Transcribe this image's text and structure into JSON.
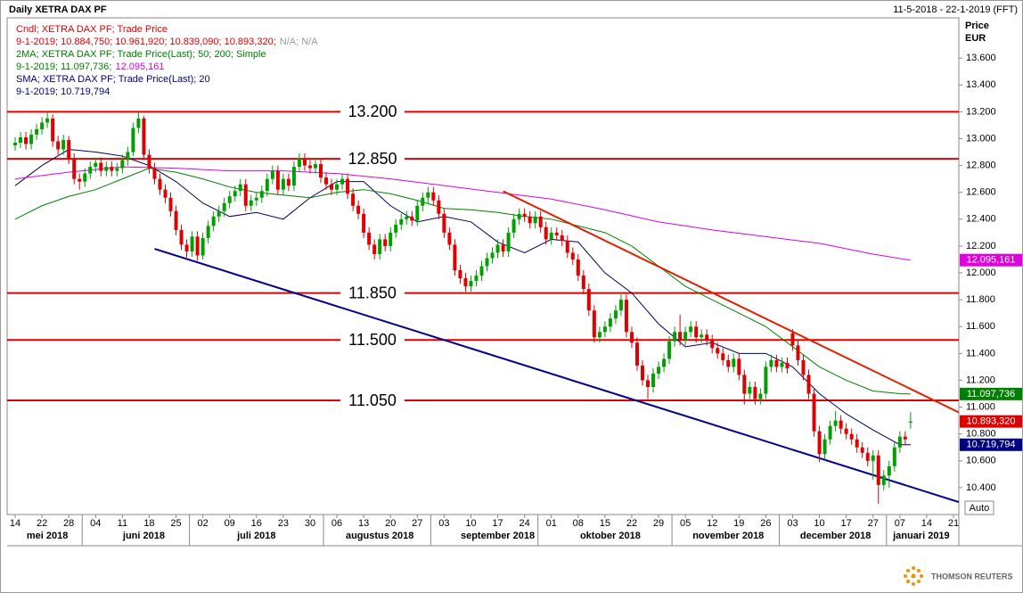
{
  "chart_data": {
    "type": "candlestick",
    "title": "Daily XETRA DAX PF",
    "date_range": "11-5-2018 - 22-1-2019 (FFT)",
    "y_axis_label": [
      "Price",
      "EUR"
    ],
    "auto_label": "Auto",
    "up_color": "#00a000",
    "down_color": "#e00000",
    "legend": [
      [
        {
          "text": "Cndl; XETRA DAX PF; Trade Price",
          "color": "#e00000"
        }
      ],
      [
        {
          "text": "9-1-2019; 10.884,750; 10.961,920; 10.839,090; 10.893,320;",
          "color": "#e00000"
        },
        {
          "text": "N/A; N/A",
          "color": "#999999"
        }
      ],
      [
        {
          "text": "2MA; XETRA DAX PF; Trade Price(Last);  50;  200; Simple",
          "color": "#008000"
        }
      ],
      [
        {
          "text": "9-1-2019; 11.097,736;",
          "color": "#008000"
        },
        {
          "text": "12.095,161",
          "color": "#e000e0"
        }
      ],
      [
        {
          "text": "SMA; XETRA DAX PF; Trade Price(Last);  20",
          "color": "#000080"
        }
      ],
      [
        {
          "text": "9-1-2019; 10.719,794",
          "color": "#000080"
        }
      ]
    ],
    "xlim": [
      -1.5,
      176
    ],
    "xticks": [
      {
        "value": 0,
        "label": "14"
      },
      {
        "value": 5,
        "label": "22"
      },
      {
        "value": 10,
        "label": "28"
      },
      {
        "value": 15,
        "label": "04"
      },
      {
        "value": 20,
        "label": "11"
      },
      {
        "value": 25,
        "label": "18"
      },
      {
        "value": 30,
        "label": "25"
      },
      {
        "value": 35,
        "label": "02"
      },
      {
        "value": 40,
        "label": "09"
      },
      {
        "value": 45,
        "label": "16"
      },
      {
        "value": 50,
        "label": "23"
      },
      {
        "value": 55,
        "label": "30"
      },
      {
        "value": 60,
        "label": "06"
      },
      {
        "value": 65,
        "label": "13"
      },
      {
        "value": 70,
        "label": "20"
      },
      {
        "value": 75,
        "label": "27"
      },
      {
        "value": 80,
        "label": "03"
      },
      {
        "value": 85,
        "label": "10"
      },
      {
        "value": 90,
        "label": "17"
      },
      {
        "value": 95,
        "label": "24"
      },
      {
        "value": 100,
        "label": "01"
      },
      {
        "value": 105,
        "label": "08"
      },
      {
        "value": 110,
        "label": "15"
      },
      {
        "value": 115,
        "label": "22"
      },
      {
        "value": 120,
        "label": "29"
      },
      {
        "value": 125,
        "label": "05"
      },
      {
        "value": 130,
        "label": "12"
      },
      {
        "value": 135,
        "label": "19"
      },
      {
        "value": 140,
        "label": "26"
      },
      {
        "value": 145,
        "label": "03"
      },
      {
        "value": 150,
        "label": "10"
      },
      {
        "value": 155,
        "label": "17"
      },
      {
        "value": 160,
        "label": "27"
      },
      {
        "value": 165,
        "label": "07"
      },
      {
        "value": 170,
        "label": "14"
      },
      {
        "value": 175,
        "label": "21"
      }
    ],
    "month_labels": [
      {
        "value": 6,
        "label": "mei 2018"
      },
      {
        "value": 24,
        "label": "juni 2018"
      },
      {
        "value": 45,
        "label": "juli 2018"
      },
      {
        "value": 68,
        "label": "augustus 2018"
      },
      {
        "value": 90,
        "label": "september 2018"
      },
      {
        "value": 111,
        "label": "oktober 2018"
      },
      {
        "value": 133,
        "label": "november 2018"
      },
      {
        "value": 153,
        "label": "december 2018"
      },
      {
        "value": 169,
        "label": "januari 2019"
      }
    ],
    "ylim": [
      10200,
      13900
    ],
    "yticks": [
      {
        "value": 10400,
        "label": "10.400"
      },
      {
        "value": 10600,
        "label": "10.600"
      },
      {
        "value": 10800,
        "label": "10.800"
      },
      {
        "value": 11000,
        "label": "11.000"
      },
      {
        "value": 11200,
        "label": "11.200"
      },
      {
        "value": 11400,
        "label": "11.400"
      },
      {
        "value": 11600,
        "label": "11.600"
      },
      {
        "value": 11800,
        "label": "11.800"
      },
      {
        "value": 12000,
        "label": "12.000"
      },
      {
        "value": 12200,
        "label": "12.200"
      },
      {
        "value": 12400,
        "label": "12.400"
      },
      {
        "value": 12600,
        "label": "12.600"
      },
      {
        "value": 12800,
        "label": "12.800"
      },
      {
        "value": 13000,
        "label": "13.000"
      },
      {
        "value": 13200,
        "label": "13.200"
      },
      {
        "value": 13400,
        "label": "13.400"
      },
      {
        "value": 13600,
        "label": "13.600"
      }
    ],
    "hline_color": "#e00000",
    "hlines": [
      {
        "value": 13200,
        "label": "13.200"
      },
      {
        "value": 12850,
        "label": "12.850"
      },
      {
        "value": 11850,
        "label": "11.850"
      },
      {
        "value": 11500,
        "label": "11.500"
      },
      {
        "value": 11050,
        "label": "11.050"
      }
    ],
    "trendlines": [
      {
        "color": "#00008b",
        "x": [
          26,
          176
        ],
        "y": [
          12179,
          10293
        ]
      },
      {
        "color": "#e02000",
        "x": [
          91,
          176
        ],
        "y": [
          12609,
          10961
        ]
      }
    ],
    "series": [
      {
        "color": "#000060",
        "x": [
          0,
          5,
          10,
          15,
          20,
          25,
          30,
          35,
          40,
          45,
          50,
          55,
          60,
          65,
          70,
          75,
          80,
          85,
          90,
          95,
          100,
          105,
          110,
          115,
          120,
          125,
          130,
          135,
          140,
          145,
          150,
          155,
          160,
          165,
          167
        ],
        "values": [
          12650,
          12800,
          12920,
          12900,
          12870,
          12800,
          12680,
          12520,
          12420,
          12450,
          12400,
          12560,
          12680,
          12680,
          12500,
          12380,
          12420,
          12380,
          12230,
          12150,
          12250,
          12230,
          12000,
          11850,
          11620,
          11450,
          11480,
          11400,
          11400,
          11300,
          11100,
          10950,
          10830,
          10720,
          10720
        ]
      },
      {
        "color": "#008000",
        "x": [
          0,
          5,
          10,
          15,
          20,
          25,
          30,
          35,
          40,
          45,
          50,
          55,
          60,
          65,
          70,
          75,
          80,
          85,
          90,
          95,
          100,
          105,
          110,
          115,
          120,
          125,
          130,
          135,
          140,
          145,
          150,
          155,
          160,
          165,
          167
        ],
        "values": [
          12400,
          12500,
          12570,
          12620,
          12700,
          12780,
          12750,
          12700,
          12640,
          12600,
          12580,
          12560,
          12600,
          12620,
          12590,
          12540,
          12480,
          12470,
          12450,
          12420,
          12400,
          12350,
          12300,
          12200,
          12050,
          11900,
          11800,
          11700,
          11600,
          11450,
          11300,
          11200,
          11120,
          11100,
          11098
        ]
      },
      {
        "color": "#e000e0",
        "x": [
          0,
          10,
          20,
          30,
          40,
          50,
          60,
          70,
          80,
          90,
          100,
          110,
          120,
          130,
          140,
          150,
          160,
          167
        ],
        "values": [
          12700,
          12750,
          12790,
          12780,
          12760,
          12760,
          12740,
          12700,
          12650,
          12600,
          12550,
          12470,
          12380,
          12320,
          12270,
          12220,
          12140,
          12095
        ]
      }
    ],
    "last_labels": [
      {
        "value": 12095.161,
        "label": "12.095,161",
        "color": "#e000e0"
      },
      {
        "value": 11097.736,
        "label": "11.097,736",
        "color": "#008000"
      },
      {
        "value": 10893.32,
        "label": "10.893,320",
        "color": "#e00000"
      },
      {
        "value": 10719.794,
        "label": "10.719,794",
        "color": "#000080"
      }
    ],
    "open": [
      12950,
      12970,
      13010,
      12960,
      13030,
      13070,
      13120,
      13150,
      12980,
      12920,
      12990,
      12850,
      12700,
      12680,
      12740,
      12790,
      12820,
      12760,
      12790,
      12760,
      12780,
      12840,
      12900,
      13080,
      13150,
      12880,
      12780,
      12700,
      12620,
      12560,
      12460,
      12320,
      12210,
      12160,
      12270,
      12130,
      12260,
      12350,
      12420,
      12460,
      12520,
      12570,
      12610,
      12660,
      12500,
      12540,
      12560,
      12610,
      12700,
      12760,
      12620,
      12700,
      12650,
      12790,
      12850,
      12800,
      12780,
      12810,
      12710,
      12660,
      12620,
      12660,
      12700,
      12590,
      12500,
      12440,
      12300,
      12210,
      12140,
      12250,
      12200,
      12300,
      12360,
      12400,
      12420,
      12390,
      12500,
      12560,
      12600,
      12540,
      12440,
      12300,
      12210,
      12020,
      11960,
      11900,
      11940,
      11980,
      12050,
      12110,
      12150,
      12210,
      12160,
      12300,
      12400,
      12440,
      12420,
      12370,
      12420,
      12340,
      12250,
      12300,
      12280,
      12240,
      12150,
      12100,
      11980,
      11880,
      11720,
      11520,
      11560,
      11600,
      11660,
      11720,
      11800,
      11560,
      11480,
      11310,
      11200,
      11150,
      11250,
      11300,
      11360,
      11490,
      11560,
      11500,
      11560,
      11600,
      11520,
      11540,
      11500,
      11440,
      11400,
      11350,
      11300,
      11360,
      11240,
      11100,
      11150,
      11060,
      11100,
      11300,
      11350,
      11300,
      11330,
      11550,
      11460,
      11350,
      11240,
      11100,
      10820,
      10650,
      10760,
      10860,
      10900,
      10840,
      10800,
      10760,
      10700,
      10660,
      10600,
      10640,
      10420,
      10490,
      10560,
      10700,
      10780,
      10884.75
    ],
    "high": [
      13010,
      13050,
      13050,
      13070,
      13110,
      13160,
      13200,
      13180,
      13020,
      13030,
      13020,
      12890,
      12740,
      12780,
      12830,
      12860,
      12860,
      12830,
      12830,
      12820,
      12880,
      12940,
      13120,
      13200,
      13170,
      12920,
      12820,
      12740,
      12660,
      12600,
      12500,
      12360,
      12250,
      12310,
      12310,
      12300,
      12390,
      12460,
      12500,
      12560,
      12610,
      12650,
      12700,
      12700,
      12580,
      12600,
      12650,
      12740,
      12800,
      12800,
      12740,
      12740,
      12830,
      12890,
      12890,
      12840,
      12850,
      12850,
      12750,
      12700,
      12700,
      12740,
      12740,
      12630,
      12540,
      12480,
      12340,
      12250,
      12290,
      12290,
      12340,
      12400,
      12440,
      12460,
      12460,
      12540,
      12600,
      12640,
      12640,
      12580,
      12480,
      12340,
      12250,
      12060,
      12000,
      11980,
      12020,
      12090,
      12150,
      12190,
      12250,
      12250,
      12340,
      12440,
      12480,
      12480,
      12460,
      12460,
      12460,
      12380,
      12340,
      12340,
      12320,
      12280,
      12190,
      12140,
      12020,
      11920,
      11760,
      11600,
      11640,
      11700,
      11760,
      11840,
      11840,
      11600,
      11520,
      11350,
      11240,
      11290,
      11340,
      11400,
      11530,
      11600,
      11690,
      11600,
      11640,
      11640,
      11580,
      11580,
      11540,
      11480,
      11440,
      11390,
      11400,
      11400,
      11280,
      11190,
      11190,
      11140,
      11340,
      11390,
      11390,
      11370,
      11370,
      11580,
      11500,
      11390,
      11280,
      11140,
      10860,
      10800,
      10900,
      10970,
      10940,
      10880,
      10840,
      10800,
      10740,
      10700,
      10680,
      10680,
      10530,
      10600,
      10740,
      10820,
      10820,
      10961.92
    ],
    "low": [
      12910,
      12930,
      12920,
      12920,
      12990,
      13030,
      13080,
      12940,
      12880,
      12880,
      12810,
      12660,
      12620,
      12640,
      12700,
      12750,
      12720,
      12720,
      12720,
      12720,
      12740,
      12800,
      12870,
      13040,
      12840,
      12740,
      12660,
      12580,
      12520,
      12420,
      12280,
      12170,
      12100,
      12120,
      12090,
      12100,
      12220,
      12310,
      12380,
      12420,
      12480,
      12530,
      12570,
      12460,
      12460,
      12500,
      12520,
      12570,
      12660,
      12580,
      12580,
      12610,
      12610,
      12750,
      12760,
      12740,
      12740,
      12670,
      12620,
      12580,
      12580,
      12620,
      12550,
      12460,
      12400,
      12260,
      12170,
      12100,
      12100,
      12160,
      12160,
      12260,
      12320,
      12360,
      12350,
      12350,
      12460,
      12520,
      12500,
      12400,
      12260,
      12170,
      11980,
      11920,
      11860,
      11860,
      11900,
      11940,
      12010,
      12070,
      12110,
      12120,
      12120,
      12260,
      12360,
      12380,
      12330,
      12330,
      12300,
      12210,
      12210,
      12240,
      12200,
      12110,
      12060,
      11940,
      11840,
      11680,
      11480,
      11480,
      11520,
      11560,
      11620,
      11680,
      11520,
      11440,
      11270,
      11160,
      11060,
      11110,
      11210,
      11260,
      11320,
      11450,
      11460,
      11460,
      11520,
      11480,
      11480,
      11460,
      11400,
      11360,
      11310,
      11260,
      11260,
      11200,
      11020,
      11060,
      11020,
      11020,
      11060,
      11260,
      11260,
      11260,
      11250,
      11420,
      11310,
      11200,
      11060,
      10780,
      10590,
      10610,
      10720,
      10820,
      10800,
      10760,
      10720,
      10660,
      10620,
      10560,
      10460,
      10280,
      10380,
      10400,
      10520,
      10660,
      10720,
      10839.09
    ],
    "close": [
      12970,
      13010,
      12960,
      13030,
      13070,
      13120,
      13150,
      12980,
      12920,
      12990,
      12850,
      12700,
      12680,
      12740,
      12790,
      12820,
      12760,
      12790,
      12760,
      12780,
      12840,
      12900,
      13080,
      13150,
      12880,
      12780,
      12700,
      12620,
      12560,
      12460,
      12320,
      12210,
      12160,
      12270,
      12130,
      12260,
      12350,
      12420,
      12460,
      12520,
      12570,
      12610,
      12660,
      12500,
      12540,
      12560,
      12610,
      12700,
      12760,
      12620,
      12700,
      12650,
      12790,
      12850,
      12800,
      12780,
      12810,
      12710,
      12660,
      12620,
      12660,
      12700,
      12590,
      12500,
      12440,
      12300,
      12210,
      12140,
      12250,
      12200,
      12300,
      12360,
      12400,
      12420,
      12390,
      12500,
      12560,
      12600,
      12540,
      12440,
      12300,
      12210,
      12020,
      11960,
      11900,
      11940,
      11980,
      12050,
      12110,
      12150,
      12210,
      12160,
      12300,
      12400,
      12440,
      12420,
      12370,
      12420,
      12340,
      12250,
      12300,
      12280,
      12240,
      12150,
      12100,
      11980,
      11880,
      11720,
      11520,
      11560,
      11600,
      11660,
      11720,
      11800,
      11560,
      11480,
      11310,
      11200,
      11150,
      11250,
      11300,
      11360,
      11490,
      11560,
      11500,
      11560,
      11600,
      11520,
      11540,
      11500,
      11440,
      11400,
      11350,
      11300,
      11360,
      11240,
      11100,
      11150,
      11060,
      11100,
      11300,
      11350,
      11300,
      11330,
      11290,
      11460,
      11350,
      11240,
      11100,
      10820,
      10650,
      10760,
      10860,
      10900,
      10840,
      10800,
      10760,
      10700,
      10660,
      10600,
      10640,
      10420,
      10490,
      10560,
      10700,
      10780,
      10760,
      10893.32
    ]
  },
  "footer": {
    "brand": "THOMSON REUTERS"
  }
}
